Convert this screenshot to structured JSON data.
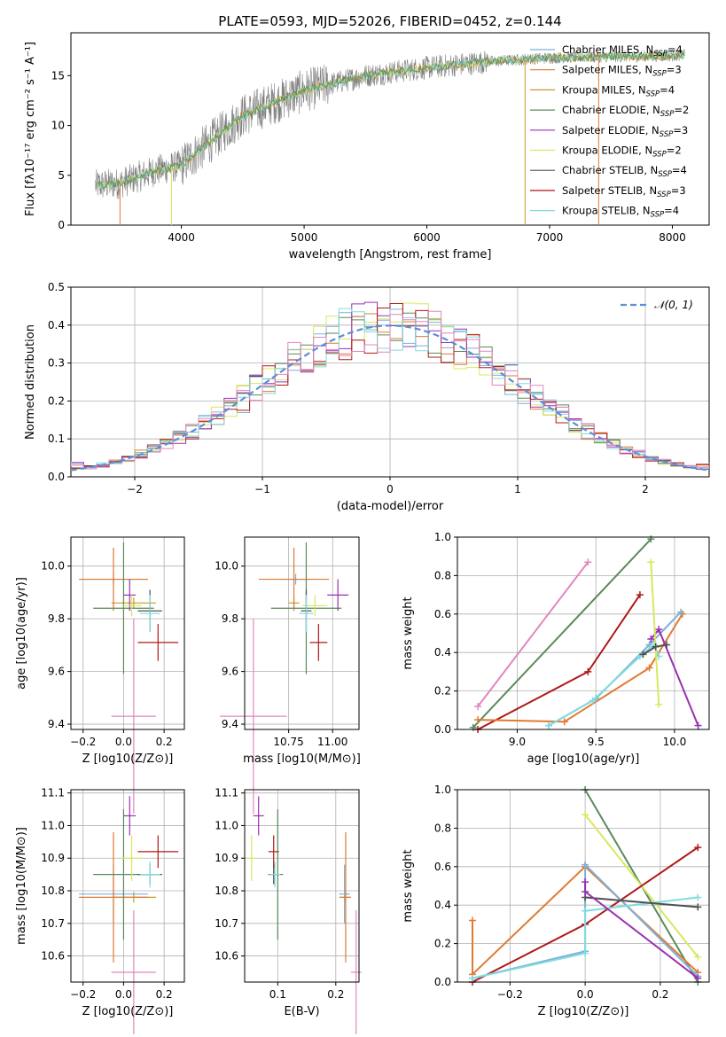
{
  "title": "PLATE=0593, MJD=52026, FIBERID=0452, z=0.144",
  "colors": {
    "chabrier_miles": "#7fb0d8",
    "salpeter_miles": "#e07a30",
    "kroupa_miles": "#c89a2a",
    "chabrier_elodie": "#5a8a5a",
    "salpeter_elodie": "#9a30b0",
    "kroupa_elodie": "#d8e860",
    "chabrier_stelib": "#505050",
    "salpeter_stelib": "#b01818",
    "kroupa_stelib": "#80dce0",
    "pink": "#e087bd",
    "normal": "#5b8fd6"
  },
  "chart_data": [
    {
      "type": "line",
      "id": "spectrum",
      "xlabel": "wavelength [Angstrom, rest frame]",
      "ylabel": "Flux [fλ10⁻¹⁷ erg cm⁻² s⁻¹ A⁻¹]",
      "xlim": [
        3100,
        8300
      ],
      "ylim": [
        0,
        19.3
      ],
      "xticks": [
        "4000",
        "5000",
        "6000",
        "7000",
        "8000"
      ],
      "yticks": [
        "0",
        "5",
        "10",
        "15"
      ],
      "data_xrange": [
        3300,
        8100
      ],
      "data_trend": [
        [
          3300,
          4.0
        ],
        [
          3500,
          4.2
        ],
        [
          3800,
          5.5
        ],
        [
          4000,
          6.0
        ],
        [
          4200,
          8.0
        ],
        [
          4500,
          11.0
        ],
        [
          5000,
          13.5
        ],
        [
          5500,
          15.0
        ],
        [
          6000,
          15.8
        ],
        [
          6500,
          16.4
        ],
        [
          7000,
          16.8
        ],
        [
          7500,
          16.9
        ],
        [
          8000,
          17.0
        ],
        [
          8100,
          17.1
        ]
      ],
      "legend": [
        "Chabrier MILES, N_SSP=4",
        "Salpeter MILES, N_SSP=3",
        "Kroupa MILES, N_SSP=4",
        "Chabrier ELODIE, N_SSP=2",
        "Salpeter ELODIE, N_SSP=3",
        "Kroupa ELODIE, N_SSP=2",
        "Chabrier STELIB, N_SSP=4",
        "Salpeter STELIB, N_SSP=3",
        "Kroupa STELIB, N_SSP=4"
      ],
      "legend_placement": "top-right",
      "grid": false
    },
    {
      "type": "histogram",
      "id": "residuals",
      "xlabel": "(data-model)/error",
      "ylabel": "Normed distribution",
      "xlim": [
        -2.5,
        2.5
      ],
      "ylim": [
        0,
        0.5
      ],
      "xticks": [
        "−2",
        "−1",
        "0",
        "1",
        "2"
      ],
      "yticks": [
        "0.0",
        "0.1",
        "0.2",
        "0.3",
        "0.4",
        "0.5"
      ],
      "bin_width": 0.1,
      "legend": [
        "𝒩(0, 1)"
      ],
      "legend_placement": "top-right",
      "grid": true
    },
    {
      "type": "scatter",
      "id": "age_vs_Z",
      "xlabel": "Z [log10(Z/Z⊙)]",
      "ylabel": "age  [log10(age/yr)]",
      "xlim": [
        -0.26,
        0.3
      ],
      "ylim": [
        9.38,
        10.11
      ],
      "xticks": [
        "−0.2",
        "0.0",
        "0.2"
      ],
      "yticks": [
        "9.4",
        "9.6",
        "9.8",
        "10.0"
      ],
      "grid": true
    },
    {
      "type": "scatter",
      "id": "age_vs_mass",
      "xlabel": "mass [log10(M/M⊙)]",
      "ylabel": "",
      "xlim": [
        10.5,
        11.15
      ],
      "ylim": [
        9.38,
        10.11
      ],
      "xticks": [
        "10.75",
        "11.00"
      ],
      "yticks": [
        "9.4",
        "9.6",
        "9.8",
        "10.0"
      ],
      "grid": true
    },
    {
      "type": "line",
      "id": "massweight_vs_age",
      "xlabel": "age  [log10(age/yr)]",
      "ylabel": "mass weight",
      "xlim": [
        8.62,
        10.22
      ],
      "ylim": [
        0,
        1
      ],
      "xticks": [
        "9.0",
        "9.5",
        "10.0"
      ],
      "yticks": [
        "0.0",
        "0.2",
        "0.4",
        "0.6",
        "0.8",
        "1.0"
      ],
      "grid": true
    },
    {
      "type": "scatter",
      "id": "mass_vs_Z",
      "xlabel": "Z [log10(Z/Z⊙)]",
      "ylabel": "mass [log10(M/M⊙)]",
      "xlim": [
        -0.26,
        0.3
      ],
      "ylim": [
        10.52,
        11.11
      ],
      "xticks": [
        "−0.2",
        "0.0",
        "0.2"
      ],
      "yticks": [
        "10.6",
        "10.7",
        "10.8",
        "10.9",
        "11.0",
        "11.1"
      ],
      "grid": true
    },
    {
      "type": "scatter",
      "id": "mass_vs_EBV",
      "xlabel": "E(B-V)",
      "ylabel": "",
      "xlim": [
        0.043,
        0.24
      ],
      "ylim": [
        10.52,
        11.11
      ],
      "xticks": [
        "0.1",
        "0.2"
      ],
      "yticks": [
        "10.6",
        "10.7",
        "10.8",
        "10.9",
        "11.0",
        "11.1"
      ],
      "grid": true
    },
    {
      "type": "line",
      "id": "massweight_vs_Z",
      "xlabel": "Z [log10(Z/Z⊙)]",
      "ylabel": "mass weight",
      "xlim": [
        -0.34,
        0.33
      ],
      "ylim": [
        0,
        1
      ],
      "xticks": [
        "−0.2",
        "0.0",
        "0.2"
      ],
      "yticks": [
        "0.0",
        "0.2",
        "0.4",
        "0.6",
        "0.8",
        "1.0"
      ],
      "grid": true
    }
  ],
  "models": [
    {
      "key": "kroupa_miles",
      "Z": 0.05,
      "Zerr": 0.11,
      "age": 9.86,
      "ageErr": 0.0,
      "mass": 10.78,
      "massErr": 0.0,
      "ebv": 0.215
    },
    {
      "key": "chabrier_miles",
      "Z": -0.05,
      "Zerr": 0.17,
      "age": 9.95,
      "ageErr": 0.0,
      "mass": 10.79,
      "massErr": 0.09,
      "ebv": 0.215
    },
    {
      "key": "salpeter_miles",
      "Z": -0.05,
      "Zerr": 0.17,
      "age": 9.95,
      "ageErr": 0.12,
      "mass": 10.78,
      "massErr": 0.2,
      "ebv": 0.217
    },
    {
      "key": "chabrier_elodie",
      "Z": 0.0,
      "Zerr": 0.15,
      "age": 9.84,
      "ageErr": 0.25,
      "mass": 10.85,
      "massErr": 0.2,
      "ebv": 0.1
    },
    {
      "key": "salpeter_elodie",
      "Z": 0.03,
      "Zerr": 0.03,
      "age": 9.89,
      "ageErr": 0.06,
      "mass": 11.03,
      "massErr": 0.06,
      "ebv": 0.067
    },
    {
      "key": "kroupa_elodie",
      "Z": 0.04,
      "Zerr": 0.05,
      "age": 9.85,
      "ageErr": 0.04,
      "mass": 10.9,
      "massErr": 0.07,
      "ebv": 0.055
    },
    {
      "key": "chabrier_stelib",
      "Z": 0.13,
      "Zerr": 0.06,
      "age": 9.83,
      "ageErr": 0.08,
      "mass": 10.85,
      "massErr": 0.03,
      "ebv": 0.093
    },
    {
      "key": "salpeter_stelib",
      "Z": 0.17,
      "Zerr": 0.1,
      "age": 9.71,
      "ageErr": 0.07,
      "mass": 10.92,
      "massErr": 0.05,
      "ebv": 0.093
    },
    {
      "key": "kroupa_stelib",
      "Z": 0.13,
      "Zerr": 0.05,
      "age": 9.82,
      "ageErr": 0.07,
      "mass": 10.85,
      "massErr": 0.04,
      "ebv": 0.095
    },
    {
      "key": "pink",
      "Z": 0.05,
      "Zerr": 0.11,
      "age": 9.43,
      "ageErr": 0.37,
      "mass": 10.55,
      "massErr": 0.19,
      "ebv": 0.235
    }
  ],
  "mw_age": [
    {
      "key": "pink",
      "pts": [
        [
          8.75,
          0.12
        ],
        [
          9.45,
          0.87
        ]
      ]
    },
    {
      "key": "chabrier_elodie",
      "pts": [
        [
          8.72,
          0.01
        ],
        [
          9.85,
          0.99
        ]
      ]
    },
    {
      "key": "salpeter_stelib",
      "pts": [
        [
          8.75,
          0.0
        ],
        [
          9.45,
          0.3
        ],
        [
          9.78,
          0.7
        ]
      ]
    },
    {
      "key": "salpeter_miles",
      "pts": [
        [
          8.75,
          0.05
        ],
        [
          9.3,
          0.04
        ],
        [
          9.84,
          0.32
        ],
        [
          10.05,
          0.6
        ]
      ]
    },
    {
      "key": "chabrier_miles",
      "pts": [
        [
          9.2,
          0.02
        ],
        [
          9.5,
          0.16
        ],
        [
          9.84,
          0.44
        ],
        [
          10.04,
          0.61
        ]
      ]
    },
    {
      "key": "kroupa_stelib",
      "pts": [
        [
          9.2,
          0.02
        ],
        [
          9.48,
          0.15
        ],
        [
          9.78,
          0.38
        ],
        [
          9.87,
          0.44
        ],
        [
          9.9,
          0.38
        ]
      ]
    },
    {
      "key": "salpeter_elodie",
      "pts": [
        [
          9.85,
          0.47
        ],
        [
          9.9,
          0.52
        ],
        [
          10.15,
          0.02
        ]
      ]
    },
    {
      "key": "kroupa_elodie",
      "pts": [
        [
          9.85,
          0.87
        ],
        [
          9.9,
          0.13
        ]
      ]
    },
    {
      "key": "chabrier_stelib",
      "pts": [
        [
          9.8,
          0.39
        ],
        [
          9.88,
          0.43
        ],
        [
          9.95,
          0.44
        ]
      ]
    }
  ],
  "mw_Z": [
    {
      "key": "chabrier_elodie",
      "pts": [
        [
          0.0,
          1.0
        ],
        [
          0.3,
          0.0
        ]
      ]
    },
    {
      "key": "kroupa_elodie",
      "pts": [
        [
          0.0,
          0.87
        ],
        [
          0.3,
          0.13
        ]
      ]
    },
    {
      "key": "salpeter_stelib",
      "pts": [
        [
          -0.3,
          0.0
        ],
        [
          0.0,
          0.3
        ],
        [
          0.3,
          0.7
        ]
      ]
    },
    {
      "key": "salpeter_miles",
      "pts": [
        [
          -0.3,
          0.32
        ],
        [
          -0.3,
          0.04
        ],
        [
          0.0,
          0.6
        ],
        [
          0.3,
          0.05
        ]
      ]
    },
    {
      "key": "chabrier_miles",
      "pts": [
        [
          -0.3,
          0.02
        ],
        [
          0.0,
          0.16
        ],
        [
          0.0,
          0.61
        ],
        [
          0.3,
          0.03
        ]
      ]
    },
    {
      "key": "kroupa_stelib",
      "pts": [
        [
          -0.3,
          0.02
        ],
        [
          0.0,
          0.15
        ],
        [
          0.0,
          0.37
        ],
        [
          0.3,
          0.44
        ]
      ]
    },
    {
      "key": "chabrier_stelib",
      "pts": [
        [
          0.0,
          0.44
        ],
        [
          0.3,
          0.39
        ]
      ]
    },
    {
      "key": "salpeter_elodie",
      "pts": [
        [
          0.0,
          0.52
        ],
        [
          0.0,
          0.47
        ],
        [
          0.3,
          0.02
        ]
      ]
    }
  ]
}
